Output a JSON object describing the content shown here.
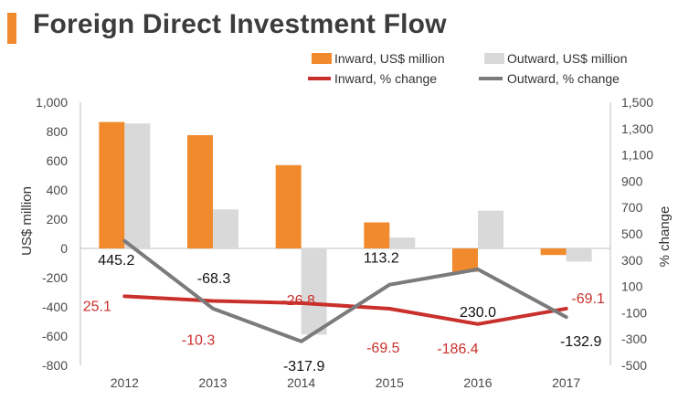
{
  "title": "Foreign Direct Investment Flow",
  "colors": {
    "accent": "#f08a2c",
    "inward_bar": "#f08a2c",
    "outward_bar": "#d9d9d9",
    "inward_line": "#c9302c",
    "outward_line": "#7b7b7b",
    "label_red": "#c9302c",
    "label_black": "#111111"
  },
  "chart_data": {
    "type": "bar",
    "title": "Foreign Direct Investment Flow",
    "categories": [
      "2012",
      "2013",
      "2014",
      "2015",
      "2016",
      "2017"
    ],
    "ylabel": "US$ million",
    "y2label": "% change",
    "ylim": [
      -800,
      1000
    ],
    "y2lim": [
      -500,
      1500
    ],
    "yticks": [
      "1,000",
      "800",
      "600",
      "400",
      "200",
      "0",
      "-200",
      "-400",
      "-600",
      "-800"
    ],
    "y2ticks": [
      "1,500",
      "1,300",
      "1,100",
      "900",
      "700",
      "500",
      "300",
      "100",
      "-100",
      "-300",
      "-500"
    ],
    "legend": {
      "inward_bar": "Inward, US$ million",
      "outward_bar": "Outward, US$ million",
      "inward_line": "Inward, % change",
      "outward_line": "Outward, % change"
    },
    "series": [
      {
        "name": "Inward, US$ million",
        "type": "bar",
        "axis": "left",
        "values": [
          865,
          775,
          570,
          178,
          -160,
          -45
        ]
      },
      {
        "name": "Outward, US$ million",
        "type": "bar",
        "axis": "left",
        "values": [
          855,
          267,
          -590,
          75,
          258,
          -90
        ]
      },
      {
        "name": "Inward, % change",
        "type": "line",
        "axis": "right",
        "values": [
          25.1,
          -10.3,
          -26.8,
          -69.5,
          -186.4,
          -69.1
        ],
        "labels": [
          "25.1",
          "-10.3",
          "-26.8",
          "-69.5",
          "-186.4",
          "-69.1"
        ]
      },
      {
        "name": "Outward, % change",
        "type": "line",
        "axis": "right",
        "values": [
          445.2,
          -68.3,
          -317.9,
          113.2,
          230.0,
          -132.9
        ],
        "labels": [
          "445.2",
          "-68.3",
          "-317.9",
          "113.2",
          "230.0",
          "-132.9"
        ]
      }
    ]
  }
}
